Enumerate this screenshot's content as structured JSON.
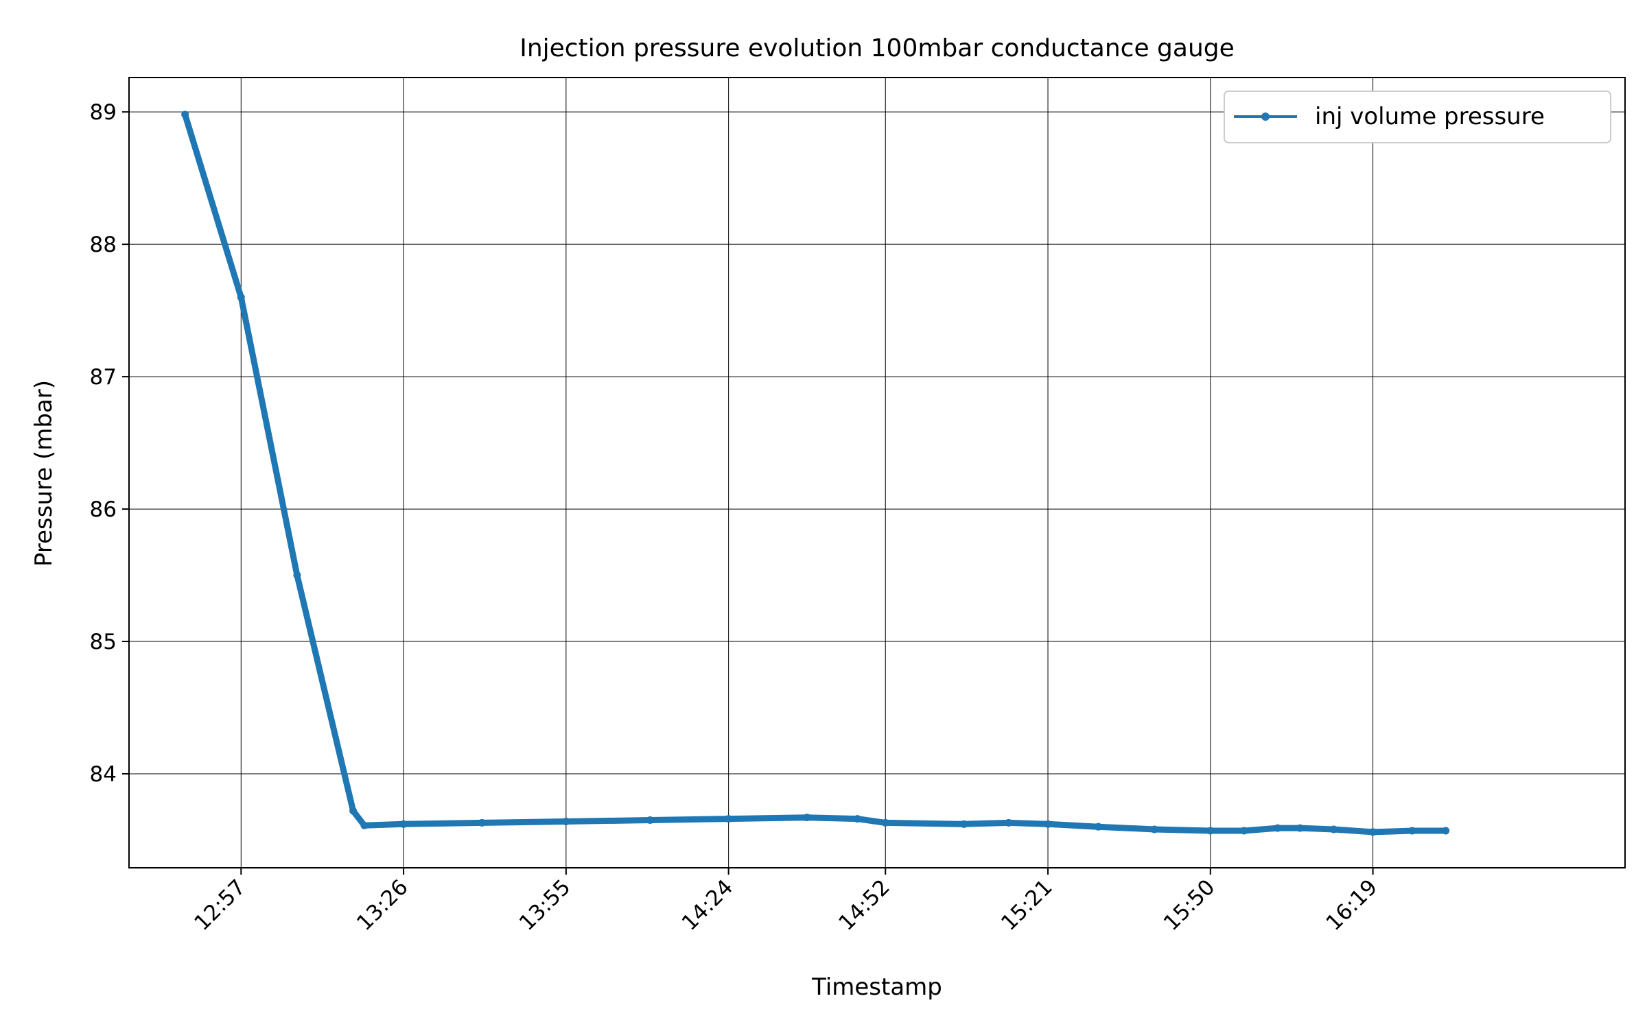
{
  "chart_data": {
    "type": "line",
    "title": "Injection pressure evolution 100mbar conductance gauge",
    "xlabel": "Timestamp",
    "ylabel": "Pressure (mbar)",
    "x_ticks": [
      "12:57",
      "13:26",
      "13:55",
      "14:24",
      "14:52",
      "15:21",
      "15:50",
      "16:19"
    ],
    "y_ticks": [
      84,
      85,
      86,
      87,
      88,
      89
    ],
    "xlim": [
      "12:37",
      "17:04"
    ],
    "ylim": [
      83.29,
      89.26
    ],
    "grid": true,
    "legend_position": "top-right",
    "series": [
      {
        "name": "inj volume pressure",
        "color": "#1f77b4",
        "x": [
          "12:47",
          "12:57",
          "13:07",
          "13:17",
          "13:19",
          "13:26",
          "13:40",
          "13:55",
          "14:10",
          "14:24",
          "14:38",
          "14:47",
          "14:52",
          "15:06",
          "15:14",
          "15:21",
          "15:30",
          "15:40",
          "15:50",
          "15:56",
          "16:02",
          "16:06",
          "16:12",
          "16:19",
          "16:26",
          "16:32"
        ],
        "y": [
          88.98,
          87.6,
          85.5,
          83.72,
          83.61,
          83.62,
          83.63,
          83.64,
          83.65,
          83.66,
          83.67,
          83.66,
          83.63,
          83.62,
          83.63,
          83.62,
          83.6,
          83.58,
          83.57,
          83.57,
          83.59,
          83.59,
          83.58,
          83.56,
          83.57,
          83.57
        ]
      }
    ]
  }
}
